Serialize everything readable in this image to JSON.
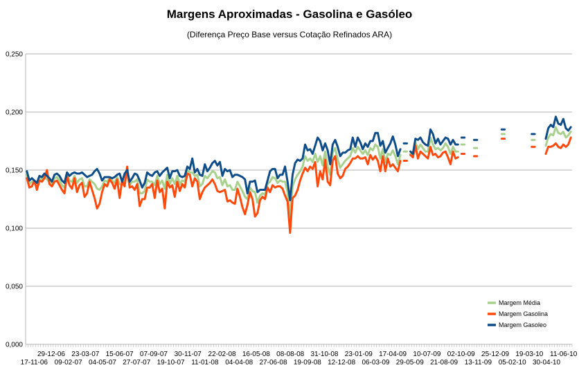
{
  "chart_data": {
    "type": "line",
    "title": "Margens Aproximadas - Gasolina e Gasóleo",
    "subtitle": "(Diferença Preço Base versus Cotação Refinados ARA)",
    "xlabel": "",
    "ylabel": "",
    "ylim": [
      0,
      0.25
    ],
    "y_ticks": [
      "0,000",
      "0,050",
      "0,100",
      "0,150",
      "0,200",
      "0,250"
    ],
    "x_tick_labels": [
      "17-11-06",
      "29-12-06",
      "09-02-07",
      "23-03-07",
      "04-05-07",
      "15-06-07",
      "27-07-07",
      "07-09-07",
      "19-10-07",
      "30-11-07",
      "11-01-08",
      "22-02-08",
      "04-04-08",
      "16-05-08",
      "27-06-08",
      "08-08-08",
      "19-09-08",
      "31-10-08",
      "12-12-08",
      "23-01-09",
      "06-03-09",
      "17-04-09",
      "29-05-09",
      "10-07-09",
      "21-08-09",
      "02-10-09",
      "13-11-09",
      "25-12-09",
      "05-02-10",
      "19-03-10",
      "30-04-10",
      "11-06-10"
    ],
    "grid": true,
    "legend_position": "bottom-right",
    "series": [
      {
        "name": "Margem Média",
        "color": "#a9d18e",
        "values": [
          0.146,
          0.138,
          0.14,
          0.141,
          0.136,
          0.143,
          0.142,
          0.145,
          0.142,
          0.14,
          0.138,
          0.143,
          0.144,
          0.141,
          0.137,
          0.135,
          0.146,
          0.141,
          0.14,
          0.145,
          0.139,
          0.142,
          0.143,
          0.136,
          0.136,
          0.142,
          0.14,
          0.138,
          0.134,
          0.133,
          0.136,
          0.141,
          0.14,
          0.143,
          0.141,
          0.139,
          0.144,
          0.138,
          0.137,
          0.142,
          0.146,
          0.137,
          0.14,
          0.14,
          0.142,
          0.13,
          0.13,
          0.132,
          0.142,
          0.14,
          0.14,
          0.137,
          0.145,
          0.138,
          0.141,
          0.134,
          0.146,
          0.138,
          0.143,
          0.138,
          0.145,
          0.138,
          0.141,
          0.14,
          0.15,
          0.148,
          0.148,
          0.145,
          0.146,
          0.136,
          0.138,
          0.145,
          0.143,
          0.146,
          0.149,
          0.148,
          0.143,
          0.144,
          0.137,
          0.142,
          0.136,
          0.137,
          0.133,
          0.133,
          0.14,
          0.136,
          0.132,
          0.127,
          0.125,
          0.135,
          0.132,
          0.131,
          0.122,
          0.128,
          0.13,
          0.129,
          0.138,
          0.14,
          0.144,
          0.143,
          0.139,
          0.141,
          0.14,
          0.14,
          0.131,
          0.11,
          0.136,
          0.142,
          0.146,
          0.149,
          0.153,
          0.162,
          0.158,
          0.16,
          0.157,
          0.164,
          0.157,
          0.162,
          0.154,
          0.166,
          0.153,
          0.146,
          0.165,
          0.169,
          0.159,
          0.152,
          0.155,
          0.158,
          0.16,
          0.162,
          0.169,
          0.165,
          0.17,
          0.167,
          0.164,
          0.167,
          0.163,
          0.169,
          0.167,
          0.172,
          0.17,
          0.16,
          0.168,
          0.157,
          0.164,
          0.163,
          0.167,
          0.162,
          0.155,
          0.163,
          null,
          0.166,
          null,
          0.164,
          0.162,
          0.174,
          0.168,
          0.172,
          0.169,
          0.166,
          0.166,
          0.178,
          0.172,
          0.168,
          0.169,
          0.167,
          0.169,
          0.173,
          0.17,
          0.164,
          0.17,
          0.166,
          0.166,
          null,
          0.172,
          null,
          null,
          null,
          null,
          0.169,
          null,
          null,
          null,
          null,
          null,
          null,
          null,
          null,
          null,
          null,
          0.181,
          null,
          null,
          null,
          null,
          null,
          null,
          null,
          null,
          null,
          null,
          null,
          0.176,
          null,
          null,
          null,
          null,
          0.171,
          0.178,
          0.181,
          0.18,
          0.187,
          0.182,
          0.181,
          0.183,
          0.178,
          0.18,
          0.183
        ]
      },
      {
        "name": "Margem Gasolina",
        "color": "#ff4a0d",
        "values": [
          0.143,
          0.135,
          0.136,
          0.141,
          0.133,
          0.141,
          0.14,
          0.143,
          0.15,
          0.138,
          0.136,
          0.14,
          0.141,
          0.137,
          0.133,
          0.13,
          0.145,
          0.137,
          0.134,
          0.143,
          0.131,
          0.137,
          0.139,
          0.127,
          0.13,
          0.14,
          0.133,
          0.126,
          0.117,
          0.121,
          0.131,
          0.138,
          0.136,
          0.142,
          0.139,
          0.134,
          0.142,
          0.126,
          0.141,
          0.136,
          0.153,
          0.135,
          0.136,
          0.133,
          0.138,
          0.119,
          0.125,
          0.125,
          0.135,
          0.135,
          0.138,
          0.126,
          0.141,
          0.131,
          0.134,
          0.117,
          0.14,
          0.135,
          0.137,
          0.127,
          0.14,
          0.132,
          0.138,
          0.135,
          0.147,
          0.146,
          0.136,
          0.143,
          0.14,
          0.125,
          0.131,
          0.135,
          0.137,
          0.139,
          0.142,
          0.138,
          0.132,
          0.131,
          0.132,
          0.133,
          0.123,
          0.124,
          0.122,
          0.121,
          0.134,
          0.127,
          0.118,
          0.112,
          0.12,
          0.131,
          0.125,
          0.11,
          0.113,
          0.124,
          0.127,
          0.125,
          0.135,
          0.131,
          0.137,
          0.135,
          0.136,
          0.136,
          0.134,
          0.128,
          0.123,
          0.096,
          0.126,
          0.128,
          0.133,
          0.141,
          0.147,
          0.152,
          0.149,
          0.153,
          0.151,
          0.157,
          0.136,
          0.149,
          0.142,
          0.159,
          0.14,
          0.137,
          0.158,
          0.162,
          0.147,
          0.143,
          0.145,
          0.151,
          0.153,
          0.156,
          0.16,
          0.16,
          0.162,
          0.16,
          0.16,
          0.161,
          0.155,
          0.163,
          0.159,
          0.162,
          0.158,
          0.149,
          0.162,
          0.149,
          0.16,
          0.153,
          0.155,
          0.152,
          0.149,
          0.158,
          null,
          0.158,
          null,
          0.163,
          0.161,
          0.171,
          0.16,
          0.166,
          0.164,
          0.162,
          0.16,
          0.17,
          0.163,
          0.164,
          0.161,
          0.162,
          0.165,
          0.166,
          0.161,
          0.155,
          0.166,
          0.16,
          0.161,
          null,
          0.164,
          null,
          null,
          null,
          null,
          0.162,
          null,
          null,
          null,
          null,
          null,
          null,
          null,
          null,
          null,
          null,
          0.177,
          null,
          null,
          null,
          null,
          null,
          null,
          null,
          null,
          null,
          null,
          null,
          0.17,
          null,
          null,
          null,
          null,
          0.164,
          0.17,
          0.17,
          0.171,
          0.173,
          0.17,
          0.169,
          0.172,
          0.17,
          0.172,
          0.178
        ]
      },
      {
        "name": "Margem Gasoleo",
        "color": "#0e4c8a",
        "values": [
          0.149,
          0.141,
          0.143,
          0.141,
          0.139,
          0.145,
          0.144,
          0.147,
          0.145,
          0.143,
          0.14,
          0.146,
          0.147,
          0.145,
          0.141,
          0.139,
          0.148,
          0.145,
          0.147,
          0.148,
          0.147,
          0.147,
          0.148,
          0.146,
          0.144,
          0.145,
          0.146,
          0.149,
          0.151,
          0.147,
          0.141,
          0.144,
          0.144,
          0.144,
          0.143,
          0.144,
          0.146,
          0.147,
          0.14,
          0.147,
          0.15,
          0.14,
          0.143,
          0.147,
          0.146,
          0.141,
          0.135,
          0.139,
          0.148,
          0.146,
          0.145,
          0.148,
          0.149,
          0.145,
          0.148,
          0.15,
          0.152,
          0.143,
          0.149,
          0.149,
          0.15,
          0.145,
          0.144,
          0.145,
          0.153,
          0.151,
          0.16,
          0.148,
          0.151,
          0.146,
          0.145,
          0.155,
          0.149,
          0.152,
          0.156,
          0.158,
          0.154,
          0.157,
          0.145,
          0.151,
          0.149,
          0.15,
          0.144,
          0.146,
          0.146,
          0.145,
          0.144,
          0.142,
          0.13,
          0.14,
          0.14,
          0.141,
          0.131,
          0.133,
          0.133,
          0.133,
          0.141,
          0.149,
          0.151,
          0.151,
          0.143,
          0.146,
          0.146,
          0.153,
          0.14,
          0.124,
          0.146,
          0.156,
          0.159,
          0.158,
          0.16,
          0.172,
          0.167,
          0.168,
          0.164,
          0.171,
          0.178,
          0.175,
          0.167,
          0.173,
          0.167,
          0.155,
          0.172,
          0.176,
          0.17,
          0.162,
          0.165,
          0.165,
          0.167,
          0.168,
          0.178,
          0.17,
          0.178,
          0.174,
          0.168,
          0.173,
          0.17,
          0.175,
          0.175,
          0.182,
          0.182,
          0.171,
          0.175,
          0.165,
          0.169,
          0.173,
          0.179,
          0.172,
          0.162,
          0.168,
          null,
          0.173,
          null,
          0.166,
          0.164,
          0.177,
          0.176,
          0.178,
          0.174,
          0.172,
          0.171,
          0.185,
          0.181,
          0.173,
          0.177,
          0.172,
          0.175,
          0.178,
          0.177,
          0.172,
          0.176,
          0.172,
          0.172,
          null,
          0.178,
          null,
          null,
          null,
          null,
          0.176,
          null,
          null,
          null,
          null,
          null,
          null,
          null,
          null,
          null,
          null,
          0.185,
          null,
          null,
          null,
          null,
          null,
          null,
          null,
          null,
          null,
          null,
          null,
          0.181,
          null,
          null,
          null,
          null,
          0.177,
          0.186,
          0.189,
          0.187,
          0.196,
          0.19,
          0.189,
          0.194,
          0.186,
          0.184,
          0.187
        ]
      }
    ]
  }
}
